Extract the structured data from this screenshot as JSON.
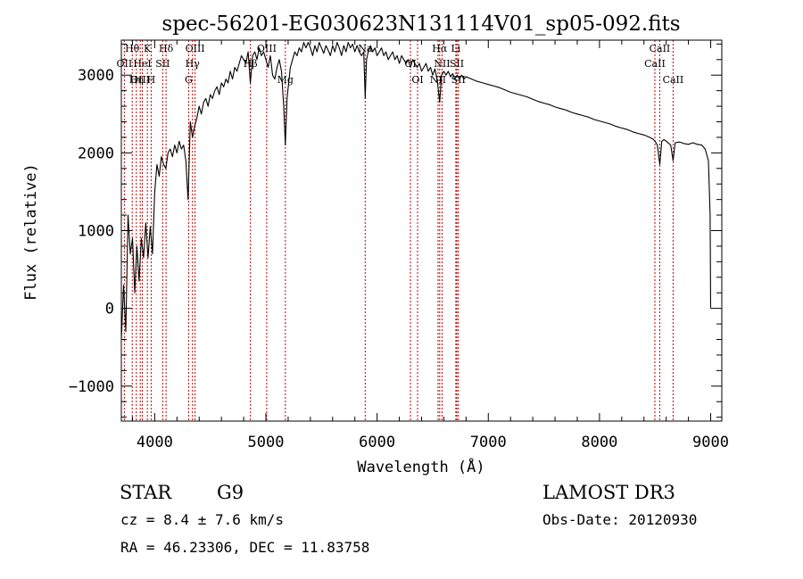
{
  "chart_data": {
    "type": "line",
    "title": "spec-56201-EG030623N131114V01_sp05-092.fits",
    "xlabel": "Wavelength (Å)",
    "ylabel": "Flux (relative)",
    "xlim": [
      3700,
      9100
    ],
    "ylim": [
      -1450,
      3450
    ],
    "x_ticks": [
      4000,
      5000,
      6000,
      7000,
      8000,
      9000
    ],
    "x_tick_labels": [
      "4000",
      "5000",
      "6000",
      "7000",
      "8000",
      "9000"
    ],
    "y_ticks": [
      -1000,
      0,
      1000,
      2000,
      3000
    ],
    "y_tick_labels": [
      "−1000",
      "0",
      "1000",
      "2000",
      "3000"
    ],
    "series": [
      {
        "name": "flux",
        "color": "#000000",
        "points": [
          [
            3700,
            -400
          ],
          [
            3720,
            300
          ],
          [
            3740,
            -300
          ],
          [
            3760,
            1200
          ],
          [
            3780,
            700
          ],
          [
            3800,
            900
          ],
          [
            3820,
            200
          ],
          [
            3840,
            800
          ],
          [
            3860,
            350
          ],
          [
            3880,
            900
          ],
          [
            3900,
            650
          ],
          [
            3920,
            1100
          ],
          [
            3940,
            650
          ],
          [
            3960,
            1050
          ],
          [
            3980,
            700
          ],
          [
            4000,
            1500
          ],
          [
            4020,
            1850
          ],
          [
            4040,
            1700
          ],
          [
            4060,
            1950
          ],
          [
            4080,
            1850
          ],
          [
            4100,
            1800
          ],
          [
            4120,
            2000
          ],
          [
            4140,
            2050
          ],
          [
            4160,
            1950
          ],
          [
            4180,
            2100
          ],
          [
            4200,
            2000
          ],
          [
            4220,
            2150
          ],
          [
            4240,
            2050
          ],
          [
            4260,
            2100
          ],
          [
            4280,
            1900
          ],
          [
            4300,
            1400
          ],
          [
            4320,
            2400
          ],
          [
            4340,
            2200
          ],
          [
            4360,
            2350
          ],
          [
            4380,
            2450
          ],
          [
            4400,
            2600
          ],
          [
            4420,
            2500
          ],
          [
            4440,
            2650
          ],
          [
            4460,
            2700
          ],
          [
            4480,
            2600
          ],
          [
            4500,
            2750
          ],
          [
            4520,
            2700
          ],
          [
            4540,
            2800
          ],
          [
            4560,
            2850
          ],
          [
            4580,
            2750
          ],
          [
            4600,
            2900
          ],
          [
            4620,
            2850
          ],
          [
            4640,
            2950
          ],
          [
            4660,
            2900
          ],
          [
            4680,
            3050
          ],
          [
            4700,
            2950
          ],
          [
            4720,
            3100
          ],
          [
            4740,
            3050
          ],
          [
            4760,
            3150
          ],
          [
            4780,
            3250
          ],
          [
            4800,
            3200
          ],
          [
            4820,
            3150
          ],
          [
            4840,
            3300
          ],
          [
            4860,
            2900
          ],
          [
            4880,
            3250
          ],
          [
            4900,
            3300
          ],
          [
            4920,
            3200
          ],
          [
            4940,
            3350
          ],
          [
            4960,
            3250
          ],
          [
            4980,
            3300
          ],
          [
            5000,
            3200
          ],
          [
            5020,
            3100
          ],
          [
            5040,
            3250
          ],
          [
            5060,
            3000
          ],
          [
            5080,
            2950
          ],
          [
            5100,
            3100
          ],
          [
            5120,
            3200
          ],
          [
            5140,
            3050
          ],
          [
            5160,
            2600
          ],
          [
            5175,
            2100
          ],
          [
            5190,
            2700
          ],
          [
            5220,
            3100
          ],
          [
            5240,
            3200
          ],
          [
            5260,
            3300
          ],
          [
            5280,
            3250
          ],
          [
            5300,
            3350
          ],
          [
            5320,
            3300
          ],
          [
            5340,
            3420
          ],
          [
            5360,
            3350
          ],
          [
            5380,
            3420
          ],
          [
            5400,
            3350
          ],
          [
            5420,
            3250
          ],
          [
            5440,
            3380
          ],
          [
            5460,
            3300
          ],
          [
            5480,
            3420
          ],
          [
            5500,
            3350
          ],
          [
            5520,
            3280
          ],
          [
            5540,
            3380
          ],
          [
            5560,
            3320
          ],
          [
            5580,
            3250
          ],
          [
            5600,
            3380
          ],
          [
            5620,
            3300
          ],
          [
            5640,
            3420
          ],
          [
            5660,
            3350
          ],
          [
            5680,
            3250
          ],
          [
            5700,
            3380
          ],
          [
            5720,
            3300
          ],
          [
            5740,
            3420
          ],
          [
            5760,
            3350
          ],
          [
            5780,
            3400
          ],
          [
            5800,
            3300
          ],
          [
            5820,
            3380
          ],
          [
            5840,
            3300
          ],
          [
            5860,
            3250
          ],
          [
            5880,
            3300
          ],
          [
            5893,
            2700
          ],
          [
            5905,
            3200
          ],
          [
            5920,
            3300
          ],
          [
            5940,
            3380
          ],
          [
            5960,
            3300
          ],
          [
            5980,
            3350
          ],
          [
            6000,
            3250
          ],
          [
            6020,
            3300
          ],
          [
            6040,
            3350
          ],
          [
            6060,
            3250
          ],
          [
            6080,
            3300
          ],
          [
            6100,
            3200
          ],
          [
            6120,
            3250
          ],
          [
            6140,
            3300
          ],
          [
            6160,
            3200
          ],
          [
            6180,
            3250
          ],
          [
            6200,
            3150
          ],
          [
            6220,
            3250
          ],
          [
            6240,
            3200
          ],
          [
            6260,
            3150
          ],
          [
            6280,
            3200
          ],
          [
            6300,
            3100
          ],
          [
            6320,
            3200
          ],
          [
            6340,
            3150
          ],
          [
            6360,
            3100
          ],
          [
            6380,
            3150
          ],
          [
            6400,
            3050
          ],
          [
            6420,
            3100
          ],
          [
            6440,
            3150
          ],
          [
            6460,
            3050
          ],
          [
            6480,
            3100
          ],
          [
            6500,
            3000
          ],
          [
            6520,
            3080
          ],
          [
            6540,
            2950
          ],
          [
            6563,
            2650
          ],
          [
            6580,
            3000
          ],
          [
            6600,
            3050
          ],
          [
            6620,
            3000
          ],
          [
            6640,
            3050
          ],
          [
            6660,
            2980
          ],
          [
            6680,
            3020
          ],
          [
            6700,
            2950
          ],
          [
            6720,
            3000
          ],
          [
            6740,
            2950
          ],
          [
            6760,
            3000
          ],
          [
            6780,
            2950
          ],
          [
            6800,
            2980
          ],
          [
            6850,
            2950
          ],
          [
            6900,
            2920
          ],
          [
            6950,
            2900
          ],
          [
            7000,
            2880
          ],
          [
            7050,
            2860
          ],
          [
            7100,
            2840
          ],
          [
            7150,
            2810
          ],
          [
            7200,
            2780
          ],
          [
            7250,
            2760
          ],
          [
            7300,
            2740
          ],
          [
            7350,
            2720
          ],
          [
            7400,
            2690
          ],
          [
            7450,
            2660
          ],
          [
            7500,
            2640
          ],
          [
            7550,
            2620
          ],
          [
            7600,
            2590
          ],
          [
            7650,
            2570
          ],
          [
            7700,
            2550
          ],
          [
            7750,
            2520
          ],
          [
            7800,
            2500
          ],
          [
            7850,
            2480
          ],
          [
            7900,
            2460
          ],
          [
            7950,
            2430
          ],
          [
            8000,
            2410
          ],
          [
            8050,
            2390
          ],
          [
            8100,
            2370
          ],
          [
            8150,
            2340
          ],
          [
            8200,
            2320
          ],
          [
            8250,
            2300
          ],
          [
            8300,
            2270
          ],
          [
            8350,
            2250
          ],
          [
            8400,
            2230
          ],
          [
            8450,
            2200
          ],
          [
            8480,
            2180
          ],
          [
            8500,
            2150
          ],
          [
            8520,
            2100
          ],
          [
            8542,
            1850
          ],
          [
            8560,
            2150
          ],
          [
            8580,
            2170
          ],
          [
            8600,
            2150
          ],
          [
            8640,
            2100
          ],
          [
            8662,
            1900
          ],
          [
            8680,
            2130
          ],
          [
            8720,
            2140
          ],
          [
            8760,
            2120
          ],
          [
            8800,
            2110
          ],
          [
            8840,
            2130
          ],
          [
            8880,
            2110
          ],
          [
            8920,
            2100
          ],
          [
            8950,
            2050
          ],
          [
            8980,
            1900
          ],
          [
            8995,
            1200
          ],
          [
            9000,
            0
          ]
        ]
      }
    ],
    "lines": [
      {
        "label": "Hθ",
        "x": 3798,
        "color": "#c00000"
      },
      {
        "label": "OII",
        "x": 3727,
        "color": "#c00000"
      },
      {
        "label": "OIII",
        "x": 3870,
        "color": "#c00000"
      },
      {
        "label": "K",
        "x": 3934,
        "color": "#c00000"
      },
      {
        "label": "HeI",
        "x": 3889,
        "color": "#c00000"
      },
      {
        "label": "Hη",
        "x": 3835,
        "color": "#c00000"
      },
      {
        "label": "Hδ",
        "x": 4102,
        "color": "#c00000"
      },
      {
        "label": "SII",
        "x": 4072,
        "color": "#c00000"
      },
      {
        "label": "H",
        "x": 3968,
        "color": "#c00000"
      },
      {
        "label": "OIII",
        "x": 4363,
        "color": "#c00000"
      },
      {
        "label": "Hγ",
        "x": 4340,
        "color": "#c00000"
      },
      {
        "label": "G",
        "x": 4305,
        "color": "#c00000"
      },
      {
        "label": "OIII",
        "x": 5007,
        "color": "#c00000"
      },
      {
        "label": "Hβ",
        "x": 4861,
        "color": "#c00000"
      },
      {
        "label": "Mg",
        "x": 5175,
        "color": "#c00000"
      },
      {
        "label": "Na",
        "x": 5893,
        "color": "#c00000"
      },
      {
        "label": "OI",
        "x": 6300,
        "color": "#c00000"
      },
      {
        "label": "OI",
        "x": 6364,
        "color": "#c00000"
      },
      {
        "label": "Hα",
        "x": 6563,
        "color": "#c00000"
      },
      {
        "label": "SII",
        "x": 6717,
        "color": "#c00000"
      },
      {
        "label": "NII",
        "x": 6548,
        "color": "#c00000"
      },
      {
        "label": "Li",
        "x": 6708,
        "color": "#c00000"
      },
      {
        "label": "NII",
        "x": 6584,
        "color": "#c00000"
      },
      {
        "label": "SII",
        "x": 6731,
        "color": "#c00000"
      },
      {
        "label": "CaII",
        "x": 8542,
        "color": "#c00000"
      },
      {
        "label": "CaII",
        "x": 8498,
        "color": "#c00000"
      },
      {
        "label": "CaII",
        "x": 8662,
        "color": "#c00000"
      }
    ]
  },
  "info": {
    "object_class": "STAR",
    "subclass": "G9",
    "redshift": "cz = 8.4 ± 7.6 km/s",
    "coords": "RA =  46.23306, DEC =  11.83758",
    "survey": "LAMOST DR3",
    "obs_date": "Obs-Date: 20120930"
  }
}
